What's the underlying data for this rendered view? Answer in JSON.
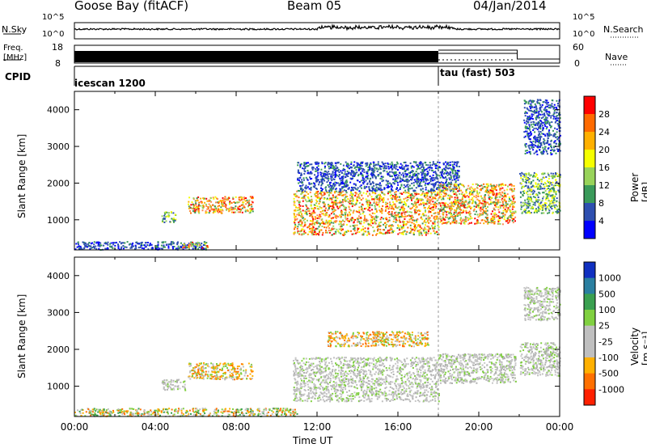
{
  "header": {
    "station": "Goose Bay (fitACF)",
    "beam": "Beam 05",
    "date": "04/Jan/2014"
  },
  "noise_panel": {
    "left_label": "N.Sky",
    "left_ticks": [
      "10^5",
      "10^0"
    ],
    "right_ticks": [
      "10^5",
      "10^0"
    ],
    "right_label": "N.Search"
  },
  "freq_panel": {
    "left_label_line1": "Freq.",
    "left_label_line2": "[MHz]",
    "left_ticks": [
      "18",
      "8"
    ],
    "right_ticks": [
      "60",
      "0"
    ],
    "right_label": "Nave"
  },
  "cpid_panel": {
    "label": "CPID",
    "segments": [
      {
        "name": "icescan 1200",
        "start_hour": 0
      },
      {
        "name": "tau (fast) 503",
        "start_hour": 18
      }
    ]
  },
  "chart_data": [
    {
      "type": "heatmap",
      "panel": "power",
      "ylabel": "Slant Range [km]",
      "yticks": [
        "4000",
        "3000",
        "2000",
        "1000"
      ],
      "ylim": [
        180,
        4500
      ],
      "xlim": [
        0,
        24
      ],
      "colorbar": {
        "label": "Power [dB]",
        "ticks": [
          "28",
          "24",
          "20",
          "16",
          "12",
          "8",
          "4"
        ],
        "colors": [
          "#ff0000",
          "#ff6a00",
          "#ffb000",
          "#f5ff00",
          "#98d35a",
          "#3a9a5a",
          "#2e4fb0",
          "#0000ff"
        ]
      },
      "echo_regions": [
        {
          "t0": 0.0,
          "t1": 6.5,
          "r0": 200,
          "r1": 420,
          "level": "weak"
        },
        {
          "t0": 4.3,
          "t1": 5.0,
          "r0": 950,
          "r1": 1250,
          "level": "medium"
        },
        {
          "t0": 5.6,
          "t1": 8.8,
          "r0": 1200,
          "r1": 1650,
          "level": "strong"
        },
        {
          "t0": 5.3,
          "t1": 6.6,
          "r0": 250,
          "r1": 420,
          "level": "strong"
        },
        {
          "t0": 10.8,
          "t1": 18.0,
          "r0": 600,
          "r1": 1800,
          "level": "strong"
        },
        {
          "t0": 11.0,
          "t1": 19.0,
          "r0": 1800,
          "r1": 2600,
          "level": "weak"
        },
        {
          "t0": 18.0,
          "t1": 21.8,
          "r0": 900,
          "r1": 2000,
          "level": "strong"
        },
        {
          "t0": 22.0,
          "t1": 24.0,
          "r0": 1200,
          "r1": 2300,
          "level": "medium"
        },
        {
          "t0": 22.2,
          "t1": 24.0,
          "r0": 2800,
          "r1": 4300,
          "level": "weak"
        }
      ]
    },
    {
      "type": "heatmap",
      "panel": "velocity",
      "ylabel": "Slant Range [km]",
      "yticks": [
        "4000",
        "3000",
        "2000",
        "1000"
      ],
      "ylim": [
        180,
        4500
      ],
      "xlim": [
        0,
        24
      ],
      "xticks": [
        "00:00",
        "04:00",
        "08:00",
        "12:00",
        "16:00",
        "20:00",
        "00:00"
      ],
      "xlabel": "Time UT",
      "colorbar": {
        "label": "Velocity [m s⁻¹]",
        "ticks": [
          "1000",
          "500",
          "100",
          "25",
          "-25",
          "-100",
          "-500",
          "-1000"
        ],
        "colors": [
          "#1030c0",
          "#2a7fa0",
          "#3aa050",
          "#80d040",
          "#bfbfbf",
          "#bfbfbf",
          "#ffb000",
          "#ff7000",
          "#ff2000"
        ]
      },
      "echo_regions": [
        {
          "t0": 0.0,
          "t1": 11.0,
          "r0": 200,
          "r1": 420,
          "level": "mixed"
        },
        {
          "t0": 4.3,
          "t1": 5.5,
          "r0": 900,
          "r1": 1200,
          "level": "ground"
        },
        {
          "t0": 5.6,
          "t1": 8.8,
          "r0": 1200,
          "r1": 1650,
          "level": "orange"
        },
        {
          "t0": 10.8,
          "t1": 18.0,
          "r0": 600,
          "r1": 1800,
          "level": "ground"
        },
        {
          "t0": 12.5,
          "t1": 17.5,
          "r0": 2100,
          "r1": 2500,
          "level": "orange"
        },
        {
          "t0": 18.0,
          "t1": 21.8,
          "r0": 1100,
          "r1": 1900,
          "level": "ground"
        },
        {
          "t0": 22.0,
          "t1": 24.0,
          "r0": 1300,
          "r1": 2200,
          "level": "ground"
        },
        {
          "t0": 22.2,
          "t1": 24.0,
          "r0": 2800,
          "r1": 3700,
          "level": "ground"
        }
      ]
    }
  ],
  "xaxis": {
    "ticks": [
      "00:00",
      "04:00",
      "08:00",
      "12:00",
      "16:00",
      "20:00",
      "00:00"
    ],
    "label": "Time UT"
  }
}
